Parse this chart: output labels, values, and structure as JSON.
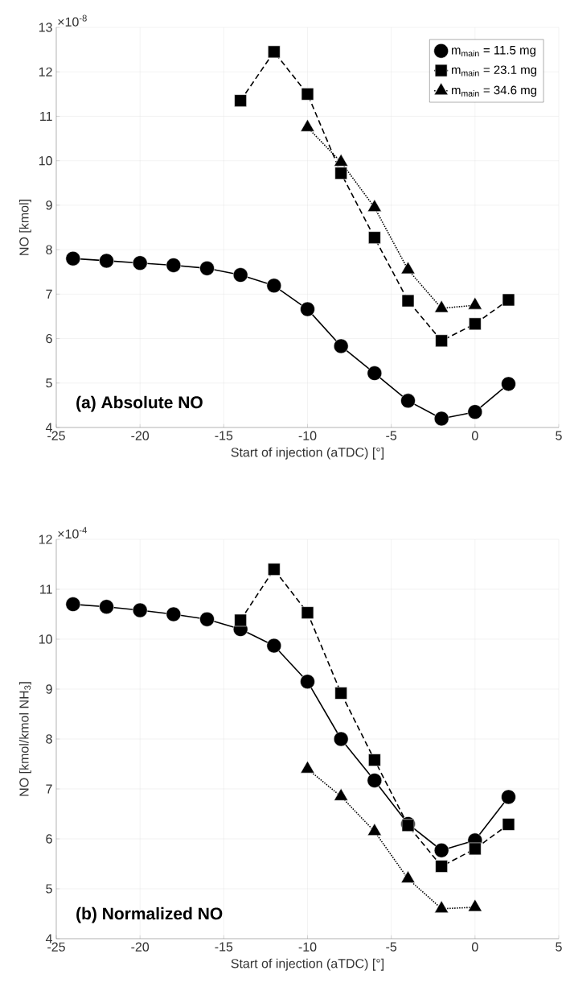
{
  "chart_data": [
    {
      "type": "line",
      "xlabel": "Start of injection (aTDC) [°]",
      "ylabel": "NO [kmol]",
      "xlim": [
        -25,
        5
      ],
      "xticks": [
        -25,
        -20,
        -15,
        -10,
        -5,
        0,
        5
      ],
      "ylim": [
        4,
        13
      ],
      "yticks": [
        4,
        5,
        6,
        7,
        8,
        9,
        10,
        11,
        12,
        13
      ],
      "grid": true,
      "legend": "top right",
      "annotations": [
        "×10$^{-8}$",
        "(a) Absolute NO"
      ],
      "series": [
        {
          "name": "m$_{main}$ = 11.5 mg",
          "color": "#000000",
          "marker": "circle",
          "line_style": "solid",
          "x": [
            -24,
            -22,
            -20,
            -18,
            -16,
            -14,
            -12,
            -10,
            -8,
            -6,
            -4,
            -2,
            0,
            2
          ],
          "values": [
            7.8,
            7.75,
            7.7,
            7.65,
            7.58,
            7.43,
            7.19,
            6.66,
            5.83,
            5.22,
            4.6,
            4.2,
            4.35,
            4.98
          ]
        },
        {
          "name": "m$_{main}$ = 23.1 mg",
          "color": "#000000",
          "marker": "square",
          "line_style": "dashed",
          "x": [
            -14,
            -12,
            -10,
            -8,
            -6,
            -4,
            -2,
            0,
            2
          ],
          "values": [
            11.35,
            12.45,
            11.5,
            9.72,
            8.27,
            6.85,
            5.95,
            6.33,
            6.87
          ]
        },
        {
          "name": "m$_{main}$ = 34.6 mg",
          "color": "#000000",
          "marker": "triangle",
          "line_style": "dotted",
          "x": [
            -10,
            -8,
            -6,
            -4,
            -2,
            0
          ],
          "values": [
            10.75,
            9.97,
            8.95,
            7.55,
            6.68,
            6.75
          ]
        }
      ]
    },
    {
      "type": "line",
      "xlabel": "Start of injection (aTDC) [°]",
      "ylabel": "NO [kmol/kmol NH$_{3}$]",
      "xlim": [
        -25,
        5
      ],
      "xticks": [
        -25,
        -20,
        -15,
        -10,
        -5,
        0,
        5
      ],
      "ylim": [
        4,
        12
      ],
      "yticks": [
        4,
        5,
        6,
        7,
        8,
        9,
        10,
        11,
        12
      ],
      "grid": true,
      "annotations": [
        "×10$^{-4}$",
        "(b) Normalized NO"
      ],
      "series": [
        {
          "color": "#000000",
          "marker": "circle",
          "line_style": "solid",
          "x": [
            -24,
            -22,
            -20,
            -18,
            -16,
            -14,
            -12,
            -10,
            -8,
            -6,
            -4,
            -2,
            0,
            2
          ],
          "values": [
            10.7,
            10.65,
            10.58,
            10.5,
            10.4,
            10.2,
            9.87,
            9.15,
            8.0,
            7.17,
            6.3,
            5.77,
            5.97,
            6.84
          ]
        },
        {
          "color": "#000000",
          "marker": "square",
          "line_style": "dashed",
          "x": [
            -14,
            -12,
            -10,
            -8,
            -6,
            -4,
            -2,
            0,
            2
          ],
          "values": [
            10.38,
            11.4,
            10.53,
            8.92,
            7.58,
            6.27,
            5.45,
            5.8,
            6.29
          ]
        },
        {
          "color": "#000000",
          "marker": "triangle",
          "line_style": "dotted",
          "x": [
            -10,
            -8,
            -6,
            -4,
            -2,
            0
          ],
          "values": [
            7.4,
            6.85,
            6.15,
            5.2,
            4.6,
            4.63
          ]
        }
      ]
    }
  ]
}
